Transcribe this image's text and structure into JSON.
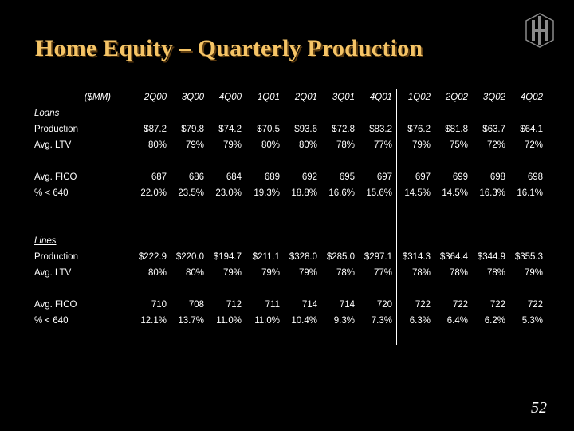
{
  "title": "Home Equity – Quarterly Production",
  "page_number": "52",
  "units_label": "($MM)",
  "quarters": [
    "2Q00",
    "3Q00",
    "4Q00",
    "1Q01",
    "2Q01",
    "3Q01",
    "4Q01",
    "1Q02",
    "2Q02",
    "3Q02",
    "4Q02"
  ],
  "loans": {
    "section_label": "Loans",
    "rows": [
      {
        "label": "Production",
        "values": [
          "$87.2",
          "$79.8",
          "$74.2",
          "$70.5",
          "$93.6",
          "$72.8",
          "$83.2",
          "$76.2",
          "$81.8",
          "$63.7",
          "$64.1"
        ]
      },
      {
        "label": "Avg. LTV",
        "values": [
          "80%",
          "79%",
          "79%",
          "80%",
          "80%",
          "78%",
          "77%",
          "79%",
          "75%",
          "72%",
          "72%"
        ]
      },
      {
        "label": "Avg. FICO",
        "values": [
          "687",
          "686",
          "684",
          "689",
          "692",
          "695",
          "697",
          "697",
          "699",
          "698",
          "698"
        ]
      },
      {
        "label": "% < 640",
        "values": [
          "22.0%",
          "23.5%",
          "23.0%",
          "19.3%",
          "18.8%",
          "16.6%",
          "15.6%",
          "14.5%",
          "14.5%",
          "16.3%",
          "16.1%"
        ]
      }
    ]
  },
  "lines": {
    "section_label": "Lines",
    "rows": [
      {
        "label": "Production",
        "values": [
          "$222.9",
          "$220.0",
          "$194.7",
          "$211.1",
          "$328.0",
          "$285.0",
          "$297.1",
          "$314.3",
          "$364.4",
          "$344.9",
          "$355.3"
        ]
      },
      {
        "label": "Avg. LTV",
        "values": [
          "80%",
          "80%",
          "79%",
          "79%",
          "79%",
          "78%",
          "77%",
          "78%",
          "78%",
          "78%",
          "79%"
        ]
      },
      {
        "label": "Avg. FICO",
        "values": [
          "710",
          "708",
          "712",
          "711",
          "714",
          "714",
          "720",
          "722",
          "722",
          "722",
          "722"
        ]
      },
      {
        "label": "% < 640",
        "values": [
          "12.1%",
          "13.7%",
          "11.0%",
          "11.0%",
          "10.4%",
          "9.3%",
          "7.3%",
          "6.3%",
          "6.4%",
          "6.2%",
          "5.3%"
        ]
      }
    ]
  },
  "colors": {
    "title": "#f5c466",
    "background": "#000000",
    "text": "#ffffff"
  },
  "logo_icon": "hh-monogram-icon"
}
